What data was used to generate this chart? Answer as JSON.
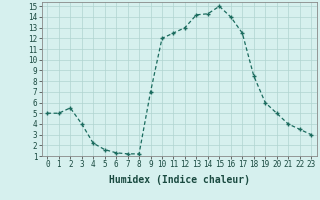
{
  "x": [
    0,
    1,
    2,
    3,
    4,
    5,
    6,
    7,
    8,
    9,
    10,
    11,
    12,
    13,
    14,
    15,
    16,
    17,
    18,
    19,
    20,
    21,
    22,
    23
  ],
  "y": [
    5.0,
    5.0,
    5.5,
    4.0,
    2.2,
    1.6,
    1.3,
    1.2,
    1.2,
    7.0,
    12.0,
    12.5,
    13.0,
    14.2,
    14.3,
    15.0,
    14.0,
    12.5,
    8.5,
    6.0,
    5.0,
    4.0,
    3.5,
    3.0
  ],
  "line_color": "#1a6b5e",
  "marker": "+",
  "marker_size": 3.5,
  "bg_color": "#d6f0ee",
  "grid_color": "#b0d4d0",
  "xlabel": "Humidex (Indice chaleur)",
  "xlim": [
    -0.5,
    23.5
  ],
  "ylim": [
    1,
    15.4
  ],
  "yticks": [
    1,
    2,
    3,
    4,
    5,
    6,
    7,
    8,
    9,
    10,
    11,
    12,
    13,
    14,
    15
  ],
  "xtick_labels": [
    "0",
    "1",
    "2",
    "3",
    "4",
    "5",
    "6",
    "7",
    "8",
    "9",
    "10",
    "11",
    "12",
    "13",
    "14",
    "15",
    "16",
    "17",
    "18",
    "19",
    "20",
    "21",
    "22",
    "23"
  ],
  "xlabel_fontsize": 7,
  "tick_fontsize": 5.5
}
